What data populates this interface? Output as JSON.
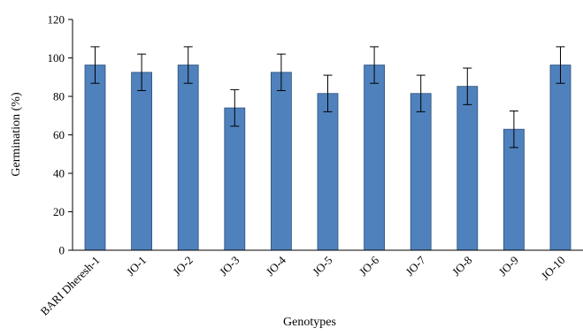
{
  "chart_data": {
    "type": "bar",
    "title": "",
    "xlabel": "Genotypes",
    "ylabel": "Germination (%)",
    "ylim": [
      0,
      120
    ],
    "yticks": [
      0,
      20,
      40,
      60,
      80,
      100,
      120
    ],
    "grid": false,
    "legend": "none",
    "categories": [
      "BARI Dheresh-1",
      "JO-1",
      "JO-2",
      "JO-3",
      "JO-4",
      "JO-5",
      "JO-6",
      "JO-7",
      "JO-8",
      "JO-9",
      "JO-10"
    ],
    "series": [
      {
        "values": [
          96.3,
          92.5,
          96.3,
          74.0,
          92.5,
          81.5,
          96.3,
          81.5,
          85.2,
          62.9,
          96.3
        ],
        "errors": [
          9.5,
          9.5,
          9.5,
          9.5,
          9.5,
          9.5,
          9.5,
          9.5,
          9.5,
          9.5,
          9.5
        ],
        "color": "#4f81bd"
      }
    ]
  }
}
